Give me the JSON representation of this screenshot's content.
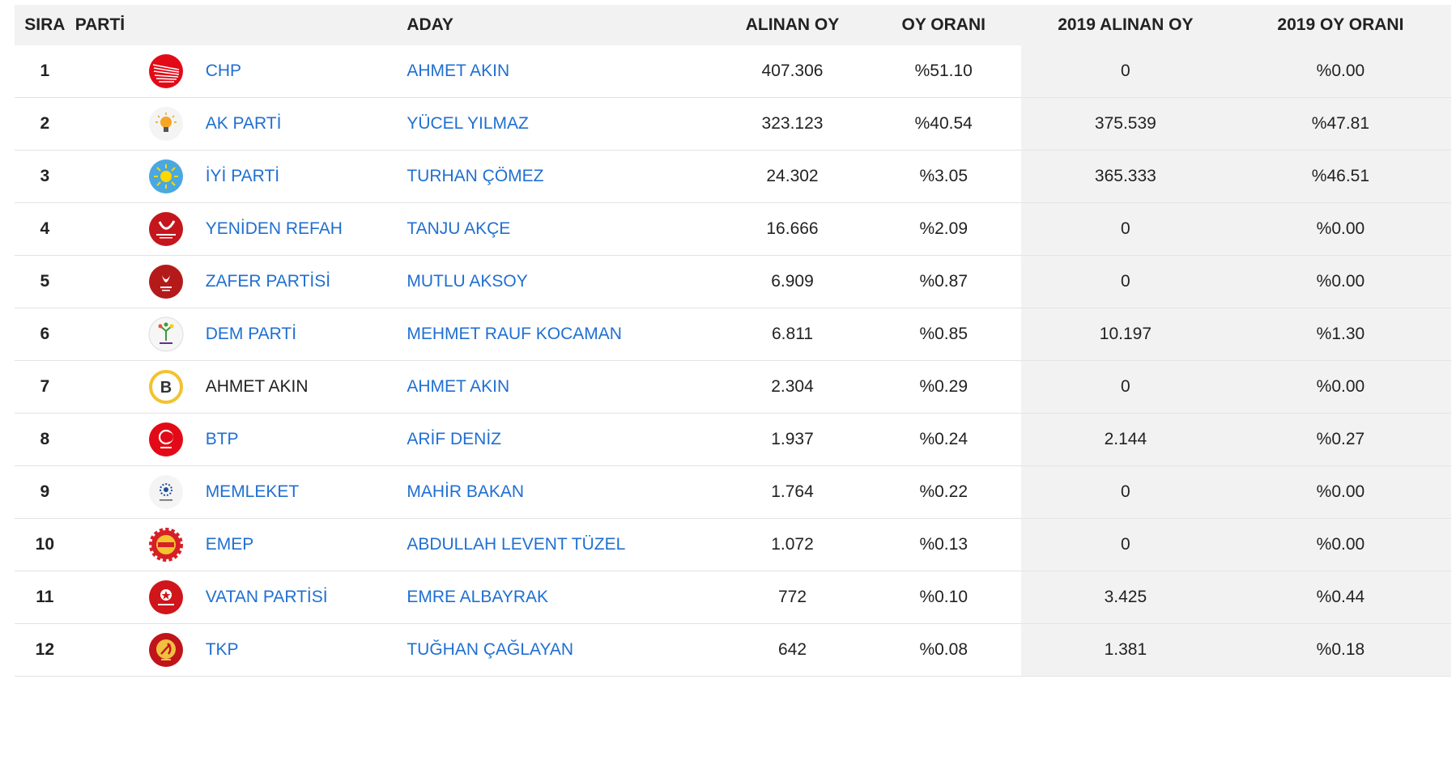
{
  "headers": {
    "rank": "SIRA",
    "party": "PARTİ",
    "candidate": "ADAY",
    "votes": "ALINAN OY",
    "pct": "OY ORANI",
    "votes2019": "2019 ALINAN OY",
    "pct2019": "2019 OY ORANI"
  },
  "rows": [
    {
      "rank": "1",
      "party": "CHP",
      "candidate": "AHMET AKIN",
      "votes": "407.306",
      "pct": "%51.10",
      "votes2019": "0",
      "pct2019": "%0.00",
      "logo": "chp-logo",
      "color": "#e30a17"
    },
    {
      "rank": "2",
      "party": "AK PARTİ",
      "candidate": "YÜCEL YILMAZ",
      "votes": "323.123",
      "pct": "%40.54",
      "votes2019": "375.539",
      "pct2019": "%47.81",
      "logo": "akp-logo",
      "color": "#f5a623"
    },
    {
      "rank": "3",
      "party": "İYİ PARTİ",
      "candidate": "TURHAN ÇÖMEZ",
      "votes": "24.302",
      "pct": "%3.05",
      "votes2019": "365.333",
      "pct2019": "%46.51",
      "logo": "iyi-logo",
      "color": "#4aa8e0"
    },
    {
      "rank": "4",
      "party": "YENİDEN REFAH",
      "candidate": "TANJU AKÇE",
      "votes": "16.666",
      "pct": "%2.09",
      "votes2019": "0",
      "pct2019": "%0.00",
      "logo": "yeniden-refah-logo",
      "color": "#c4161c"
    },
    {
      "rank": "5",
      "party": "ZAFER PARTİSİ",
      "candidate": "MUTLU AKSOY",
      "votes": "6.909",
      "pct": "%0.87",
      "votes2019": "0",
      "pct2019": "%0.00",
      "logo": "zafer-logo",
      "color": "#b51a1a"
    },
    {
      "rank": "6",
      "party": "DEM PARTİ",
      "candidate": "MEHMET RAUF KOCAMAN",
      "votes": "6.811",
      "pct": "%0.85",
      "votes2019": "10.197",
      "pct2019": "%1.30",
      "logo": "dem-logo",
      "color": "#6a2c8a"
    },
    {
      "rank": "7",
      "party": "AHMET AKIN",
      "candidate": "AHMET AKIN",
      "votes": "2.304",
      "pct": "%0.29",
      "votes2019": "0",
      "pct2019": "%0.00",
      "logo": "independent-logo",
      "color": "#f2c230",
      "logo_letter": "B"
    },
    {
      "rank": "8",
      "party": "BTP",
      "candidate": "ARİF DENİZ",
      "votes": "1.937",
      "pct": "%0.24",
      "votes2019": "2.144",
      "pct2019": "%0.27",
      "logo": "btp-logo",
      "color": "#e30a17"
    },
    {
      "rank": "9",
      "party": "MEMLEKET",
      "candidate": "MAHİR BAKAN",
      "votes": "1.764",
      "pct": "%0.22",
      "votes2019": "0",
      "pct2019": "%0.00",
      "logo": "memleket-logo",
      "color": "#1d4e9e"
    },
    {
      "rank": "10",
      "party": "EMEP",
      "candidate": "ABDULLAH LEVENT TÜZEL",
      "votes": "1.072",
      "pct": "%0.13",
      "votes2019": "0",
      "pct2019": "%0.00",
      "logo": "emep-logo",
      "color": "#d61f26"
    },
    {
      "rank": "11",
      "party": "VATAN PARTİSİ",
      "candidate": "EMRE ALBAYRAK",
      "votes": "772",
      "pct": "%0.10",
      "votes2019": "3.425",
      "pct2019": "%0.44",
      "logo": "vatan-logo",
      "color": "#d0151b"
    },
    {
      "rank": "12",
      "party": "TKP",
      "candidate": "TUĞHAN ÇAĞLAYAN",
      "votes": "642",
      "pct": "%0.08",
      "votes2019": "1.381",
      "pct2019": "%0.18",
      "logo": "tkp-logo",
      "color": "#c0141a"
    }
  ],
  "colors": {
    "link": "#1f6fd1",
    "header_bg": "#f2f2f2"
  }
}
